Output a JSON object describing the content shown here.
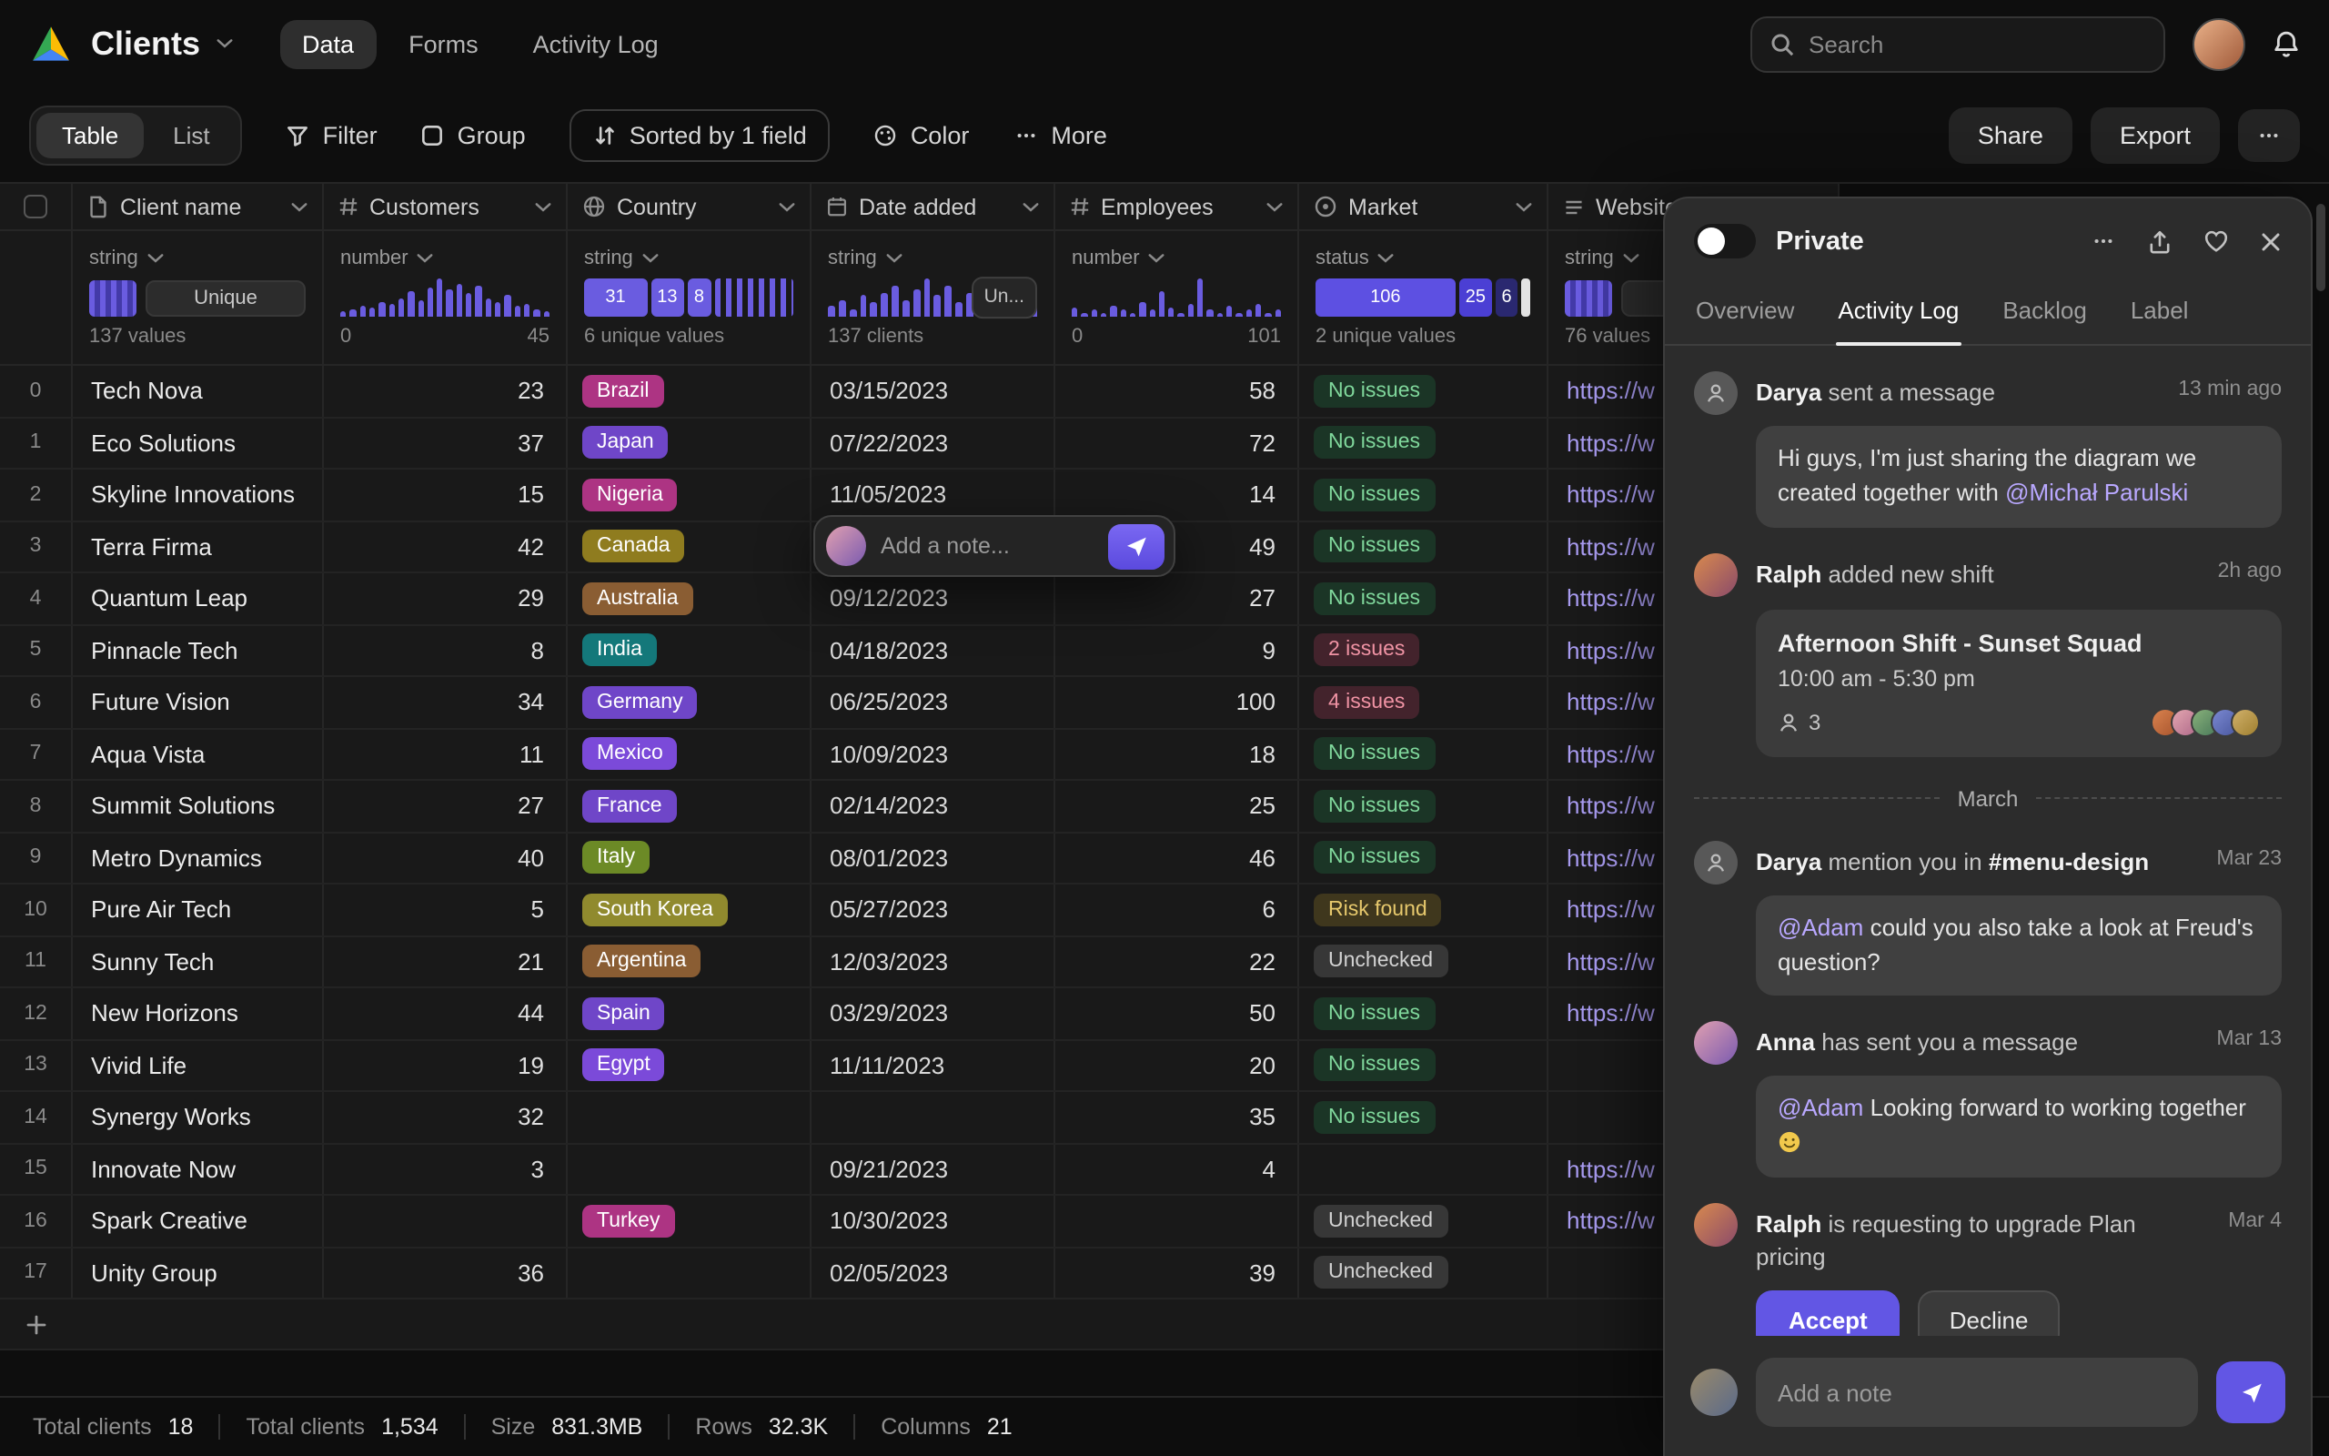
{
  "header": {
    "app_title": "Clients",
    "nav": [
      {
        "label": "Data",
        "active": true
      },
      {
        "label": "Forms",
        "active": false
      },
      {
        "label": "Activity Log",
        "active": false
      }
    ],
    "search_placeholder": "Search"
  },
  "toolbar": {
    "views": [
      {
        "label": "Table",
        "active": true
      },
      {
        "label": "List",
        "active": false
      }
    ],
    "actions": [
      {
        "label": "Filter",
        "icon": "filter-icon",
        "outlined": false
      },
      {
        "label": "Group",
        "icon": "group-icon",
        "outlined": false
      },
      {
        "label": "Sorted by 1 field",
        "icon": "sort-icon",
        "outlined": true
      },
      {
        "label": "Color",
        "icon": "color-icon",
        "outlined": false
      },
      {
        "label": "More",
        "icon": "more-icon",
        "outlined": false
      }
    ],
    "right_actions": [
      {
        "label": "Share"
      },
      {
        "label": "Export"
      }
    ]
  },
  "table": {
    "columns": [
      {
        "label": "Client name",
        "icon": "file-icon",
        "type": "string",
        "stat": {
          "kind": "unique",
          "badge": "Unique",
          "count": "137 values"
        }
      },
      {
        "label": "Customers",
        "icon": "hash-icon",
        "type": "number",
        "stat": {
          "kind": "histogram",
          "min": "0",
          "max": "45",
          "bars": [
            3,
            4,
            6,
            5,
            8,
            7,
            10,
            13,
            9,
            15,
            20,
            14,
            17,
            12,
            16,
            10,
            8,
            11,
            6,
            7,
            4,
            3
          ]
        }
      },
      {
        "label": "Country",
        "icon": "globe-icon",
        "type": "string",
        "stat": {
          "kind": "blocks",
          "values": [
            31,
            13,
            8
          ],
          "count": "6 unique values"
        }
      },
      {
        "label": "Date added",
        "icon": "calendar-icon",
        "type": "string",
        "stat": {
          "kind": "histogram",
          "pill": "Un...",
          "count": "137 clients",
          "bars": [
            3,
            5,
            2,
            6,
            4,
            7,
            9,
            5,
            8,
            11,
            6,
            9,
            4,
            7,
            10,
            5,
            7,
            4,
            6,
            3
          ]
        }
      },
      {
        "label": "Employees",
        "icon": "hash-icon",
        "type": "number",
        "stat": {
          "kind": "histogram",
          "min": "0",
          "max": "101",
          "bars": [
            4,
            2,
            3,
            2,
            5,
            3,
            2,
            7,
            3,
            12,
            4,
            2,
            6,
            18,
            3,
            2,
            5,
            2,
            3,
            6,
            2,
            3
          ]
        }
      },
      {
        "label": "Market",
        "icon": "status-icon",
        "type": "status",
        "stat": {
          "kind": "segments",
          "segments": [
            106,
            25,
            6
          ],
          "count": "2 unique values"
        }
      },
      {
        "label": "Website",
        "icon": "text-icon",
        "type": "string",
        "stat": {
          "kind": "unique",
          "badge": "Unique",
          "count": "76 values"
        }
      }
    ],
    "rows": [
      {
        "idx": 0,
        "name": "Tech Nova",
        "customers": "23",
        "country": "Brazil",
        "country_color": "pink",
        "date": "03/15/2023",
        "employees": "58",
        "market": "No issues",
        "market_kind": "ok",
        "website": "https://w"
      },
      {
        "idx": 1,
        "name": "Eco Solutions",
        "customers": "37",
        "country": "Japan",
        "country_color": "purple",
        "date": "07/22/2023",
        "employees": "72",
        "market": "No issues",
        "market_kind": "ok",
        "website": "https://w"
      },
      {
        "idx": 2,
        "name": "Skyline Innovations",
        "customers": "15",
        "country": "Nigeria",
        "country_color": "pink",
        "date": "11/05/2023",
        "employees": "14",
        "market": "No issues",
        "market_kind": "ok",
        "website": "https://w"
      },
      {
        "idx": 3,
        "name": "Terra Firma",
        "customers": "42",
        "country": "Canada",
        "country_color": "olive",
        "date": "",
        "employees": "49",
        "market": "No issues",
        "market_kind": "ok",
        "website": "https://w"
      },
      {
        "idx": 4,
        "name": "Quantum Leap",
        "customers": "29",
        "country": "Australia",
        "country_color": "brown",
        "date": "09/12/2023",
        "employees": "27",
        "market": "No issues",
        "market_kind": "ok",
        "website": "https://w"
      },
      {
        "idx": 5,
        "name": "Pinnacle Tech",
        "customers": "8",
        "country": "India",
        "country_color": "teal",
        "date": "04/18/2023",
        "employees": "9",
        "market": "2 issues",
        "market_kind": "bad",
        "website": "https://w"
      },
      {
        "idx": 6,
        "name": "Future Vision",
        "customers": "34",
        "country": "Germany",
        "country_color": "purple",
        "date": "06/25/2023",
        "employees": "100",
        "market": "4 issues",
        "market_kind": "bad",
        "website": "https://w"
      },
      {
        "idx": 7,
        "name": "Aqua Vista",
        "customers": "11",
        "country": "Mexico",
        "country_color": "violet",
        "date": "10/09/2023",
        "employees": "18",
        "market": "No issues",
        "market_kind": "ok",
        "website": "https://w"
      },
      {
        "idx": 8,
        "name": "Summit Solutions",
        "customers": "27",
        "country": "France",
        "country_color": "purple",
        "date": "02/14/2023",
        "employees": "25",
        "market": "No issues",
        "market_kind": "ok",
        "website": "https://w"
      },
      {
        "idx": 9,
        "name": "Metro Dynamics",
        "customers": "40",
        "country": "Italy",
        "country_color": "green_olive",
        "date": "08/01/2023",
        "employees": "46",
        "market": "No issues",
        "market_kind": "ok",
        "website": "https://w"
      },
      {
        "idx": 10,
        "name": "Pure Air Tech",
        "customers": "5",
        "country": "South Korea",
        "country_color": "yellow_olive",
        "date": "05/27/2023",
        "employees": "6",
        "market": "Risk found",
        "market_kind": "risk",
        "website": "https://w"
      },
      {
        "idx": 11,
        "name": "Sunny Tech",
        "customers": "21",
        "country": "Argentina",
        "country_color": "brown",
        "date": "12/03/2023",
        "employees": "22",
        "market": "Unchecked",
        "market_kind": "none",
        "website": "https://w"
      },
      {
        "idx": 12,
        "name": "New Horizons",
        "customers": "44",
        "country": "Spain",
        "country_color": "purple",
        "date": "03/29/2023",
        "employees": "50",
        "market": "No issues",
        "market_kind": "ok",
        "website": "https://w"
      },
      {
        "idx": 13,
        "name": "Vivid Life",
        "customers": "19",
        "country": "Egypt",
        "country_color": "violet",
        "date": "11/11/2023",
        "employees": "20",
        "market": "No issues",
        "market_kind": "ok",
        "website": ""
      },
      {
        "idx": 14,
        "name": "Synergy Works",
        "customers": "32",
        "country": "",
        "country_color": "",
        "date": "",
        "employees": "35",
        "market": "No issues",
        "market_kind": "ok",
        "website": ""
      },
      {
        "idx": 15,
        "name": "Innovate Now",
        "customers": "3",
        "country": "",
        "country_color": "",
        "date": "09/21/2023",
        "employees": "4",
        "market": "",
        "market_kind": "",
        "website": "https://w"
      },
      {
        "idx": 16,
        "name": "Spark Creative",
        "customers": "",
        "country": "Turkey",
        "country_color": "pink",
        "date": "10/30/2023",
        "employees": "",
        "market": "Unchecked",
        "market_kind": "none",
        "website": "https://w"
      },
      {
        "idx": 17,
        "name": "Unity Group",
        "customers": "36",
        "country": "",
        "country_color": "",
        "date": "02/05/2023",
        "employees": "39",
        "market": "Unchecked",
        "market_kind": "none",
        "website": ""
      }
    ]
  },
  "note_popover": {
    "placeholder": "Add a note..."
  },
  "status_bar": {
    "items": [
      {
        "label": "Total clients",
        "value": "18"
      },
      {
        "label": "Total clients",
        "value": "1,534"
      },
      {
        "label": "Size",
        "value": "831.3MB"
      },
      {
        "label": "Rows",
        "value": "32.3K"
      },
      {
        "label": "Columns",
        "value": "21"
      }
    ]
  },
  "panel": {
    "title": "Private",
    "tabs": [
      {
        "label": "Overview",
        "active": false
      },
      {
        "label": "Activity Log",
        "active": true
      },
      {
        "label": "Backlog",
        "active": false
      },
      {
        "label": "Label",
        "active": false
      }
    ],
    "feed": [
      {
        "type": "message",
        "author": "Darya",
        "action": "sent a message",
        "time": "13 min ago",
        "avatar": "gray",
        "bubble": [
          {
            "t": "Hi guys, I'm just sharing the diagram we created together with "
          },
          {
            "t": "@Michał Parulski",
            "mention": true
          }
        ]
      },
      {
        "type": "shift",
        "author": "Ralph",
        "action": "added new shift",
        "time": "2h ago",
        "avatar": "ralph",
        "card": {
          "title": "Afternoon Shift - Sunset Squad",
          "time": "10:00 am - 5:30 pm",
          "attendees": "3",
          "avatar_count": 5
        }
      },
      {
        "type": "divider",
        "label": "March"
      },
      {
        "type": "message",
        "author": "Darya",
        "action": "mention you in",
        "channel": "#menu-design",
        "time": "Mar 23",
        "avatar": "gray",
        "bubble": [
          {
            "t": "@Adam",
            "mention": true
          },
          {
            "t": " could you also take a look at Freud's question?"
          }
        ]
      },
      {
        "type": "message",
        "author": "Anna",
        "action": "has sent you a message",
        "time": "Mar 13",
        "avatar": "anna",
        "bubble": [
          {
            "t": "@Adam",
            "mention": true
          },
          {
            "t": " Looking forward to working together "
          },
          {
            "t": "🙂",
            "emoji": true
          }
        ]
      },
      {
        "type": "request",
        "author": "Ralph",
        "action": "is requesting to upgrade Plan pricing",
        "time": "Mar 4",
        "avatar": "ralph",
        "buttons": [
          {
            "label": "Accept",
            "primary": true
          },
          {
            "label": "Decline",
            "primary": false
          }
        ]
      }
    ],
    "composer": {
      "placeholder": "Add a note"
    }
  },
  "colors": {
    "accent": "#6256e4",
    "histogram": "#6a5ce0",
    "tags": {
      "pink": "#ad3483",
      "purple": "#6f46c8",
      "violet": "#7b4ad9",
      "olive": "#8f7c1f",
      "brown": "#8a5d33",
      "teal": "#14787a",
      "green_olive": "#6c8a26",
      "yellow_olive": "#908a2e"
    },
    "status": {
      "ok": {
        "bg": "#1b3526",
        "fg": "#80d89c"
      },
      "bad": {
        "bg": "#43232c",
        "fg": "#f093a4"
      },
      "risk": {
        "bg": "#3f371d",
        "fg": "#e7c96d"
      },
      "none": {
        "bg": "#373737",
        "fg": "#d2d2d2"
      }
    }
  }
}
